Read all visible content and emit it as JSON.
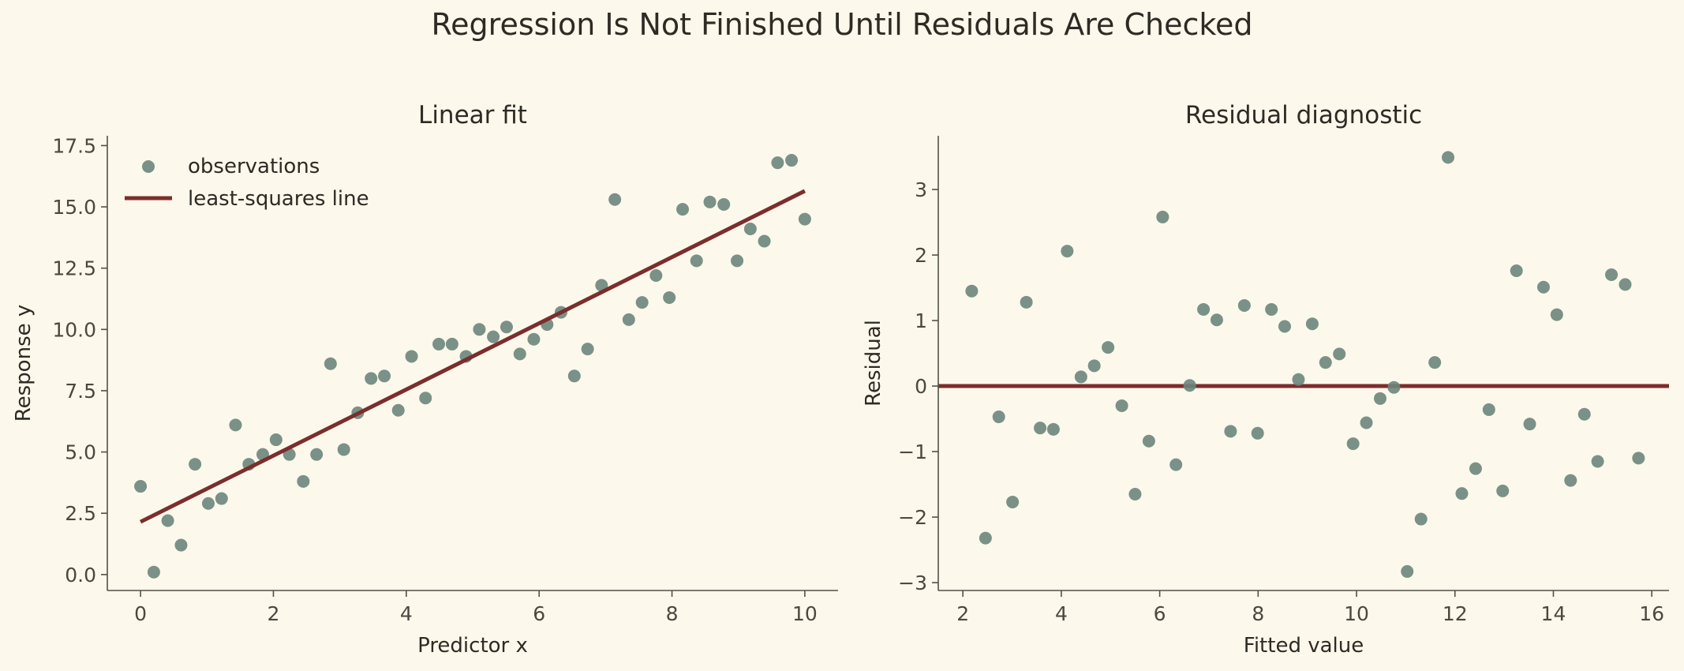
{
  "figure": {
    "suptitle": "Regression Is Not Finished Until Residuals Are Checked"
  },
  "colors": {
    "background": "#fdf8ec",
    "points": "#6b857c",
    "line": "#7b2e2c",
    "axis": "#555047",
    "text": "#2e2a24"
  },
  "chart_data": [
    {
      "type": "scatter",
      "title": "Linear fit",
      "xlabel": "Predictor x",
      "ylabel": "Response y",
      "xlim": [
        -0.5,
        10.5
      ],
      "ylim": [
        -0.65,
        17.9
      ],
      "xticks": [
        0,
        2,
        4,
        6,
        8,
        10
      ],
      "xtick_labels": [
        "0",
        "2",
        "4",
        "6",
        "8",
        "10"
      ],
      "yticks": [
        0,
        2.5,
        5,
        7.5,
        10,
        12.5,
        15,
        17.5
      ],
      "ytick_labels": [
        "0.0",
        "2.5",
        "5.0",
        "7.5",
        "10.0",
        "12.5",
        "15.0",
        "17.5"
      ],
      "legend": {
        "placement": "upper-left",
        "entries": [
          "observations",
          "least-squares line"
        ]
      },
      "series": [
        {
          "name": "observations",
          "type": "scatter",
          "x": [
            0.0,
            0.2,
            0.41,
            0.61,
            0.82,
            1.02,
            1.22,
            1.43,
            1.63,
            1.84,
            2.04,
            2.24,
            2.45,
            2.65,
            2.86,
            3.06,
            3.27,
            3.47,
            3.67,
            3.88,
            4.08,
            4.29,
            4.49,
            4.69,
            4.9,
            5.1,
            5.31,
            5.51,
            5.71,
            5.92,
            6.12,
            6.33,
            6.53,
            6.73,
            6.94,
            7.14,
            7.35,
            7.55,
            7.76,
            7.96,
            8.16,
            8.37,
            8.57,
            8.78,
            8.98,
            9.18,
            9.39,
            9.59,
            9.8,
            10.0
          ],
          "y": [
            3.6,
            0.1,
            2.2,
            1.2,
            4.5,
            2.9,
            3.1,
            6.1,
            4.5,
            4.9,
            5.5,
            4.9,
            3.8,
            4.9,
            8.6,
            5.1,
            6.6,
            8.0,
            8.1,
            6.7,
            8.9,
            7.2,
            9.4,
            9.4,
            8.9,
            10.0,
            9.7,
            10.1,
            9.0,
            9.6,
            10.2,
            10.7,
            8.1,
            9.2,
            11.8,
            15.3,
            10.4,
            11.1,
            12.2,
            11.3,
            14.9,
            12.8,
            15.2,
            15.1,
            12.8,
            14.1,
            13.6,
            16.8,
            16.9,
            14.5
          ]
        },
        {
          "name": "least-squares line",
          "type": "line",
          "x": [
            0,
            10
          ],
          "y": [
            2.15,
            15.65
          ]
        }
      ]
    },
    {
      "type": "scatter",
      "title": "Residual diagnostic",
      "xlabel": "Fitted value",
      "ylabel": "Residual",
      "xlim": [
        1.5,
        16.35
      ],
      "ylim": [
        -3.12,
        3.82
      ],
      "xticks": [
        2,
        4,
        6,
        8,
        10,
        12,
        14,
        16
      ],
      "xtick_labels": [
        "2",
        "4",
        "6",
        "8",
        "10",
        "12",
        "14",
        "16"
      ],
      "yticks": [
        -3,
        -2,
        -1,
        0,
        1,
        2,
        3
      ],
      "ytick_labels": [
        "−3",
        "−2",
        "−1",
        "0",
        "1",
        "2",
        "3"
      ],
      "reference_line": 0,
      "series": [
        {
          "type": "scatter",
          "x": [
            2.18,
            2.46,
            2.73,
            3.01,
            3.29,
            3.57,
            3.84,
            4.12,
            4.4,
            4.67,
            4.95,
            5.23,
            5.5,
            5.78,
            6.06,
            6.33,
            6.61,
            6.89,
            7.16,
            7.44,
            7.72,
            7.99,
            8.27,
            8.54,
            8.82,
            9.1,
            9.37,
            9.65,
            9.93,
            10.2,
            10.48,
            10.76,
            11.03,
            11.31,
            11.59,
            11.86,
            12.14,
            12.42,
            12.69,
            12.97,
            13.25,
            13.52,
            13.8,
            14.07,
            14.35,
            14.63,
            14.9,
            15.18,
            15.46,
            15.73
          ],
          "y": [
            1.45,
            -2.32,
            -0.47,
            -1.77,
            1.28,
            -0.64,
            -0.66,
            2.06,
            0.14,
            0.31,
            0.59,
            -0.3,
            -1.65,
            -0.84,
            2.58,
            -1.2,
            0.01,
            1.17,
            1.01,
            -0.69,
            1.23,
            -0.72,
            1.17,
            0.91,
            0.1,
            0.95,
            0.36,
            0.49,
            -0.88,
            -0.56,
            -0.19,
            -0.02,
            -2.83,
            -2.03,
            0.36,
            3.49,
            -1.64,
            -1.26,
            -0.36,
            -1.6,
            1.76,
            -0.58,
            1.51,
            1.09,
            -1.44,
            -0.43,
            -1.15,
            1.7,
            1.55,
            -1.1
          ]
        }
      ]
    }
  ]
}
